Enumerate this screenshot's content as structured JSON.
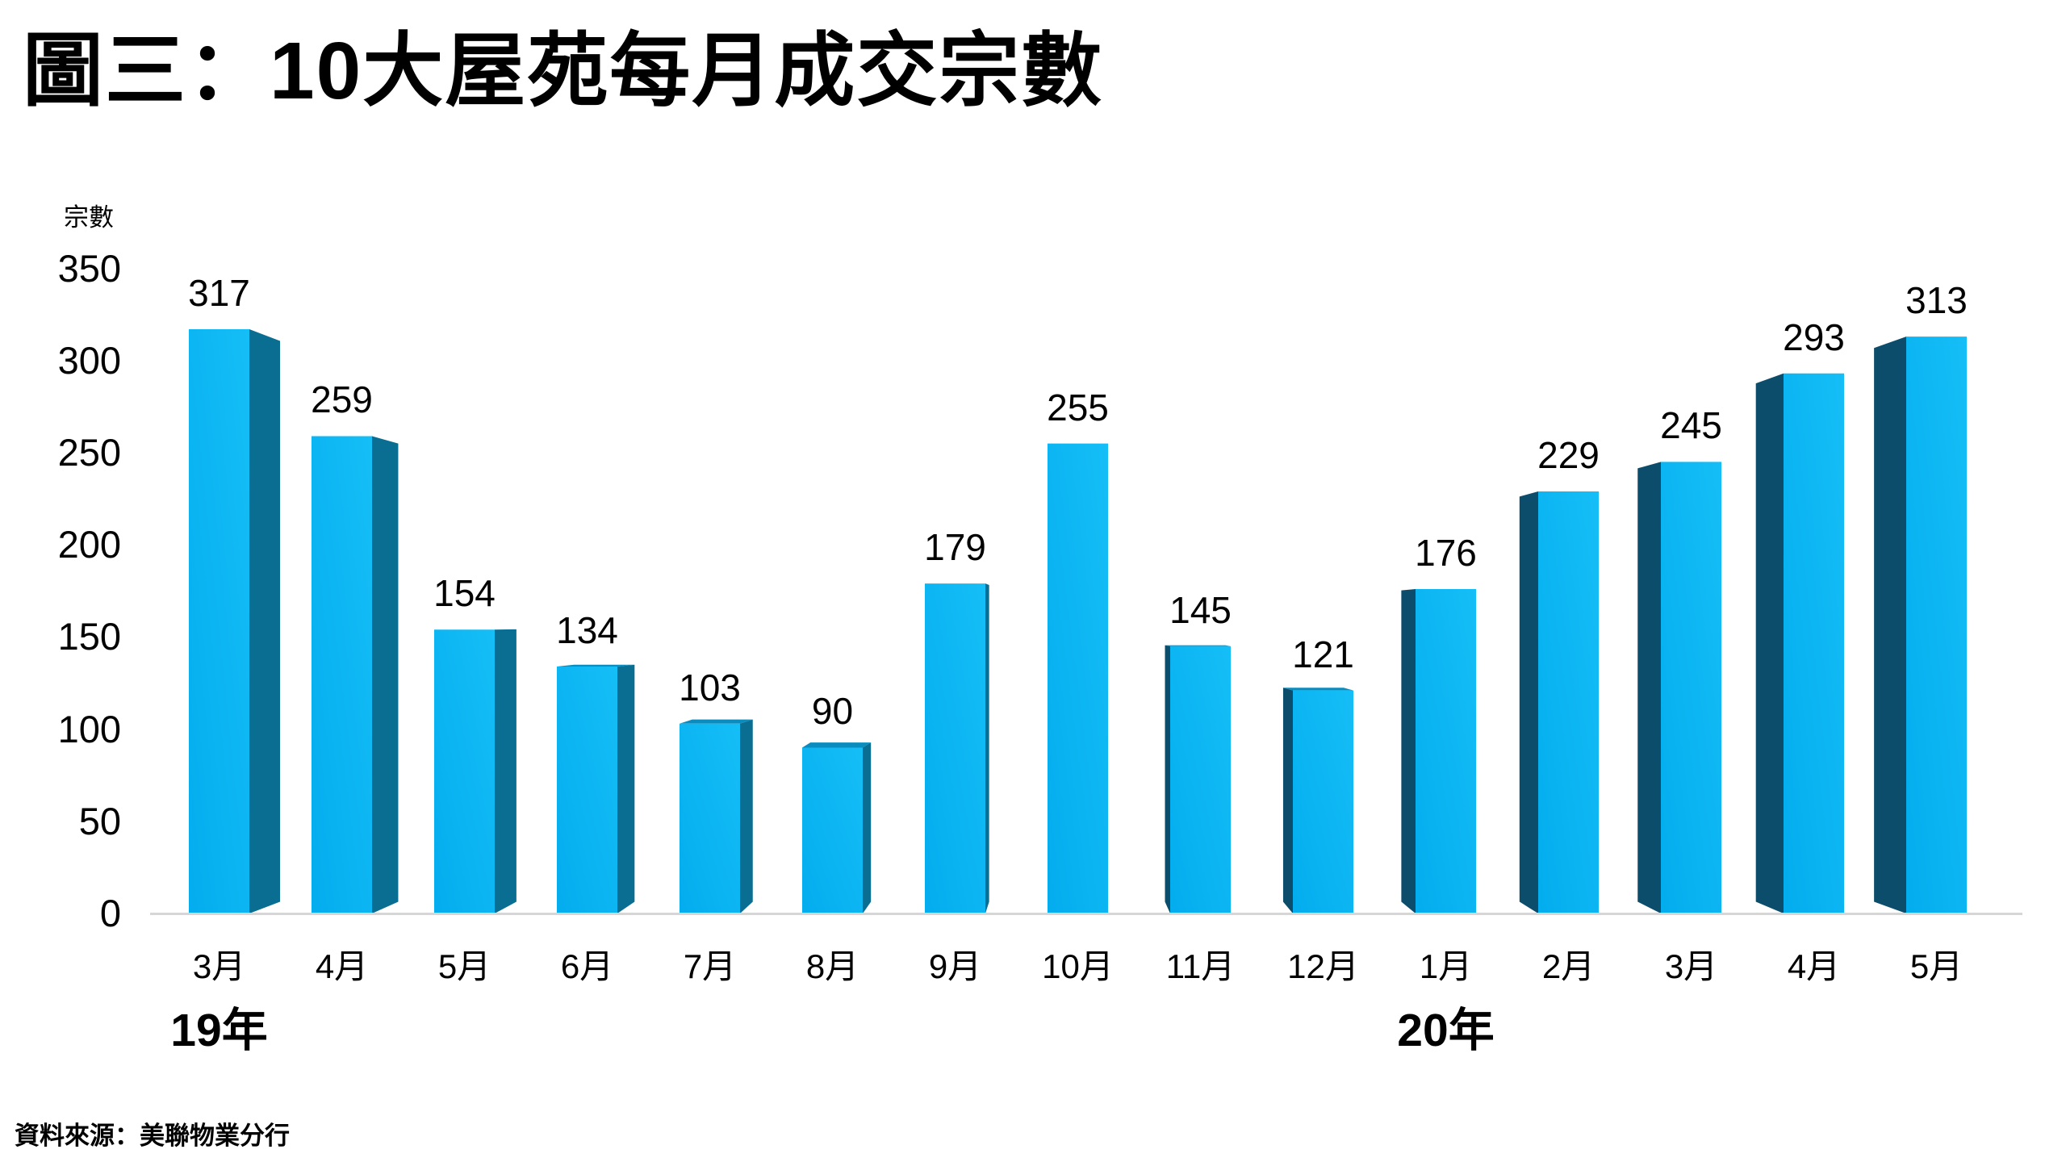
{
  "title": "圖三：10大屋苑每月成交宗數",
  "source": "資料來源：美聯物業分行",
  "chart_data": {
    "type": "bar",
    "style": "3d-perspective-column",
    "title": "圖三：10大屋苑每月成交宗數",
    "unit_label": "宗數",
    "categories": [
      "3月",
      "4月",
      "5月",
      "6月",
      "7月",
      "8月",
      "9月",
      "10月",
      "11月",
      "12月",
      "1月",
      "2月",
      "3月",
      "4月",
      "5月"
    ],
    "values": [
      317,
      259,
      154,
      134,
      103,
      90,
      179,
      255,
      145,
      121,
      176,
      229,
      245,
      293,
      313
    ],
    "year_groups": [
      {
        "label": "19年",
        "bar_index": 0
      },
      {
        "label": "20年",
        "bar_index": 10
      }
    ],
    "ylabel": "宗數",
    "yticks": [
      0,
      50,
      100,
      150,
      200,
      250,
      300,
      350
    ],
    "ylim": [
      0,
      350
    ],
    "grid": false,
    "legend": "none",
    "data_labels": true,
    "colors": {
      "bar_front": "#06b0ef",
      "bar_front_light": "#17c0f7",
      "bar_side_right": "#0a6e93",
      "bar_side_left": "#0d4d6c",
      "bar_top": "#0b8cbf",
      "axis_line": "#d6d6d6",
      "text": "#000000"
    }
  }
}
